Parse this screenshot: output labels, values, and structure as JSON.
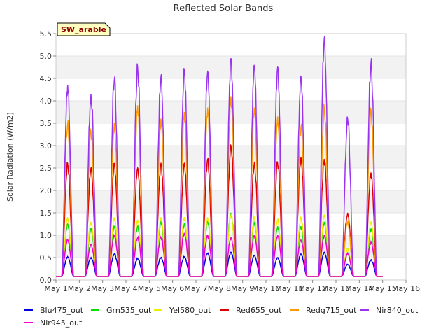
{
  "chart_data": {
    "type": "line",
    "title": "Reflected Solar Bands",
    "ylabel": "Solar Radiation (W/m2)",
    "xlabel": "",
    "site_badge": "SW_arable",
    "ylim": [
      0.0,
      5.5
    ],
    "yticks": [
      "0.0",
      "0.5",
      "1.0",
      "1.5",
      "2.0",
      "2.5",
      "3.0",
      "3.5",
      "4.0",
      "4.5",
      "5.0",
      "5.5"
    ],
    "xlim": [
      1,
      16
    ],
    "xticks": [
      "May 1",
      "May 2",
      "May 3",
      "May 4",
      "May 5",
      "May 6",
      "May 7",
      "May 8",
      "May 9",
      "May 10",
      "May 11",
      "May 12",
      "May 13",
      "May 14",
      "May 15",
      "May 16"
    ],
    "grid": "horizontal bands",
    "legend_position": "bottom",
    "days": [
      "May 1",
      "May 2",
      "May 3",
      "May 4",
      "May 5",
      "May 6",
      "May 7",
      "May 8",
      "May 9",
      "May 10",
      "May 11",
      "May 12",
      "May 13",
      "May 14"
    ],
    "series": [
      {
        "name": "Blu475_out",
        "color": "#0000dd",
        "daily_peak": [
          0.52,
          0.5,
          0.58,
          0.48,
          0.5,
          0.52,
          0.6,
          0.62,
          0.55,
          0.5,
          0.58,
          0.62,
          0.35,
          0.45
        ]
      },
      {
        "name": "Grn535_out",
        "color": "#00dd00",
        "daily_peak": [
          1.25,
          1.15,
          1.2,
          1.2,
          1.3,
          1.25,
          1.3,
          1.5,
          1.3,
          1.2,
          1.2,
          1.3,
          0.6,
          1.15
        ]
      },
      {
        "name": "Yel580_out",
        "color": "#eeee00",
        "daily_peak": [
          1.4,
          1.3,
          1.4,
          1.35,
          1.4,
          1.4,
          1.4,
          1.45,
          1.4,
          1.35,
          1.4,
          1.45,
          0.7,
          1.3
        ]
      },
      {
        "name": "Red655_out",
        "color": "#dd0000",
        "daily_peak": [
          2.6,
          2.5,
          2.6,
          2.5,
          2.6,
          2.6,
          2.7,
          3.0,
          2.6,
          2.6,
          2.75,
          2.7,
          1.5,
          2.4
        ]
      },
      {
        "name": "Redg715_out",
        "color": "#ff9900",
        "daily_peak": [
          3.5,
          3.3,
          3.5,
          3.9,
          3.6,
          3.75,
          3.85,
          4.1,
          3.85,
          3.65,
          3.4,
          3.85,
          1.3,
          3.8
        ]
      },
      {
        "name": "Nir840_out",
        "color": "#9933ee",
        "daily_peak": [
          4.35,
          4.15,
          4.45,
          4.75,
          4.55,
          4.7,
          4.65,
          4.95,
          4.8,
          4.75,
          4.55,
          5.4,
          3.6,
          4.85
        ]
      },
      {
        "name": "Nir945_out",
        "color": "#ee00cc",
        "daily_peak": [
          0.9,
          0.8,
          1.0,
          0.95,
          0.95,
          1.05,
          1.0,
          0.95,
          1.0,
          1.0,
          0.9,
          1.0,
          0.6,
          0.85
        ]
      }
    ]
  }
}
